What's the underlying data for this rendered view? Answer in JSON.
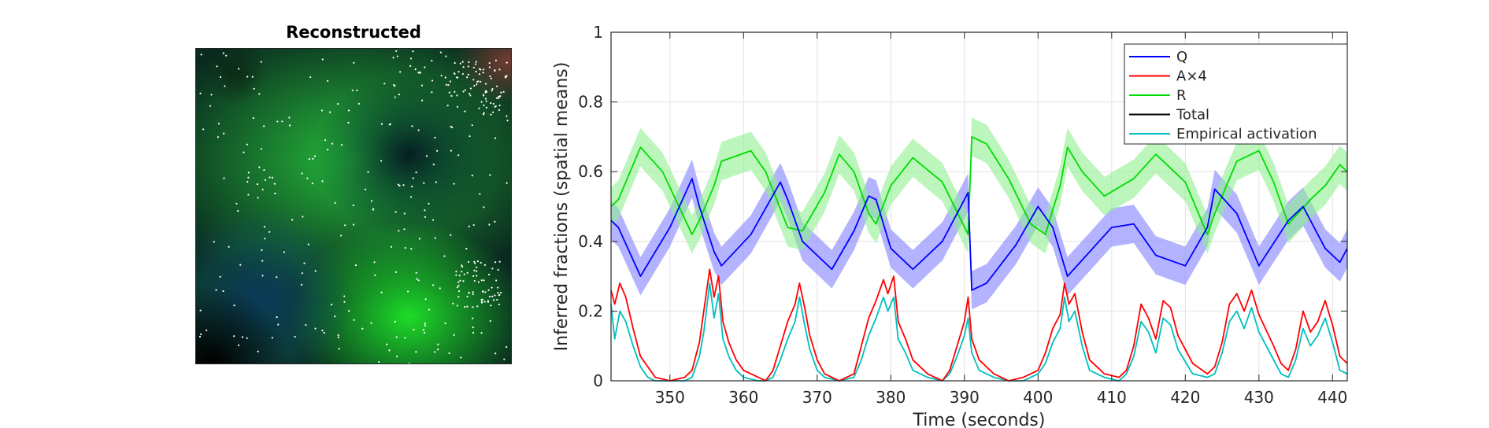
{
  "left_panel": {
    "title": "Reconstructed",
    "type": "image"
  },
  "chart_data": {
    "type": "line",
    "xlabel": "Time (seconds)",
    "ylabel": "Inferred fractions (spatial means)",
    "xlim": [
      342,
      442
    ],
    "ylim": [
      0,
      1
    ],
    "x_ticks": [
      350,
      360,
      370,
      380,
      390,
      400,
      410,
      420,
      430,
      440
    ],
    "y_ticks": [
      0,
      0.2,
      0.4,
      0.6,
      0.8,
      1
    ],
    "y_tick_labels": [
      "0",
      "0.2",
      "0.4",
      "0.6",
      "0.8",
      "1"
    ],
    "grid": true,
    "legend_position": "top-right",
    "series": [
      {
        "name": "Q",
        "color": "#0000ff",
        "band_color": "#8080ff",
        "x": [
          342,
          343,
          346,
          350,
          353,
          354,
          356,
          357,
          361,
          365,
          366,
          368,
          372,
          375,
          377,
          378,
          380,
          383,
          387,
          390.5,
          391,
          393,
          397,
          400,
          402,
          404,
          407,
          410,
          413,
          416,
          420,
          423,
          424,
          427,
          430,
          434,
          436,
          439,
          441,
          442
        ],
        "y": [
          0.46,
          0.44,
          0.3,
          0.44,
          0.58,
          0.5,
          0.37,
          0.33,
          0.42,
          0.57,
          0.52,
          0.4,
          0.32,
          0.43,
          0.53,
          0.52,
          0.38,
          0.32,
          0.4,
          0.54,
          0.26,
          0.28,
          0.39,
          0.5,
          0.44,
          0.3,
          0.37,
          0.44,
          0.45,
          0.36,
          0.33,
          0.44,
          0.55,
          0.48,
          0.33,
          0.46,
          0.5,
          0.38,
          0.34,
          0.38
        ]
      },
      {
        "name": "A×4",
        "color": "#ff0000",
        "x": [
          342,
          342.5,
          343.2,
          344,
          345,
          346,
          347,
          348,
          350,
          352,
          353,
          354,
          354.6,
          355.4,
          356,
          356.6,
          357.2,
          358,
          359,
          360,
          362,
          363,
          364,
          365,
          366,
          367,
          367.6,
          368.3,
          369,
          370,
          371,
          373,
          375,
          376,
          377,
          378,
          379,
          379.6,
          380.4,
          381,
          382,
          383,
          385,
          387,
          388,
          389,
          390,
          390.5,
          391,
          392,
          394,
          396,
          398,
          400,
          401,
          402,
          403,
          403.6,
          404.2,
          405,
          406,
          407,
          409,
          411,
          412,
          413,
          414,
          415,
          416,
          417,
          418,
          419,
          421,
          423,
          424,
          425,
          426,
          427,
          428,
          429,
          430,
          432,
          433,
          434,
          435,
          436,
          437,
          438,
          439,
          440,
          441,
          442
        ],
        "y": [
          0.26,
          0.22,
          0.28,
          0.24,
          0.15,
          0.07,
          0.04,
          0.01,
          0.0,
          0.01,
          0.03,
          0.11,
          0.2,
          0.32,
          0.24,
          0.3,
          0.17,
          0.11,
          0.06,
          0.03,
          0.01,
          0.0,
          0.03,
          0.1,
          0.17,
          0.22,
          0.28,
          0.21,
          0.13,
          0.06,
          0.02,
          0.0,
          0.02,
          0.1,
          0.18,
          0.23,
          0.29,
          0.25,
          0.3,
          0.17,
          0.12,
          0.06,
          0.02,
          0.0,
          0.03,
          0.1,
          0.17,
          0.24,
          0.12,
          0.06,
          0.02,
          0.0,
          0.01,
          0.03,
          0.08,
          0.15,
          0.19,
          0.28,
          0.22,
          0.25,
          0.14,
          0.06,
          0.02,
          0.01,
          0.03,
          0.1,
          0.22,
          0.18,
          0.12,
          0.23,
          0.21,
          0.13,
          0.05,
          0.02,
          0.04,
          0.11,
          0.22,
          0.25,
          0.2,
          0.26,
          0.19,
          0.1,
          0.05,
          0.03,
          0.09,
          0.2,
          0.14,
          0.17,
          0.23,
          0.16,
          0.07,
          0.05
        ]
      },
      {
        "name": "R",
        "color": "#00dd00",
        "band_color": "#90f090",
        "x": [
          342,
          343,
          346,
          349,
          353,
          354,
          356,
          357,
          361,
          363,
          366,
          368,
          371,
          373,
          375,
          377,
          378,
          380,
          383,
          387,
          390.5,
          391,
          393,
          396,
          399,
          401,
          403,
          404,
          406,
          409,
          413,
          416,
          420,
          423,
          424,
          427,
          430,
          432,
          434,
          437,
          439,
          441,
          442
        ],
        "y": [
          0.5,
          0.52,
          0.67,
          0.6,
          0.42,
          0.46,
          0.56,
          0.63,
          0.66,
          0.6,
          0.44,
          0.43,
          0.54,
          0.65,
          0.6,
          0.48,
          0.45,
          0.56,
          0.64,
          0.57,
          0.42,
          0.7,
          0.68,
          0.58,
          0.45,
          0.42,
          0.56,
          0.67,
          0.6,
          0.53,
          0.58,
          0.65,
          0.57,
          0.42,
          0.48,
          0.63,
          0.66,
          0.57,
          0.45,
          0.52,
          0.56,
          0.62,
          0.6
        ]
      },
      {
        "name": "Total",
        "color": "#000000",
        "x": [],
        "y": []
      },
      {
        "name": "Empirical activation",
        "color": "#00bfbf",
        "x": [
          342,
          342.5,
          343.2,
          344,
          345,
          346,
          347,
          348,
          350,
          352,
          353,
          354,
          354.6,
          355.4,
          356,
          356.6,
          357.2,
          358,
          359,
          360,
          362,
          363,
          364,
          365,
          366,
          367,
          367.6,
          368.3,
          369,
          370,
          371,
          373,
          375,
          376,
          377,
          378,
          379,
          379.6,
          380.4,
          381,
          382,
          383,
          385,
          387,
          388,
          389,
          390,
          390.5,
          391,
          392,
          394,
          396,
          398,
          400,
          401,
          402,
          403,
          403.6,
          404.2,
          405,
          406,
          407,
          409,
          411,
          412,
          413,
          414,
          415,
          416,
          417,
          418,
          419,
          421,
          423,
          424,
          425,
          426,
          427,
          428,
          429,
          430,
          432,
          433,
          434,
          435,
          436,
          437,
          438,
          439,
          440,
          441,
          442
        ],
        "y": [
          0.22,
          0.12,
          0.2,
          0.17,
          0.1,
          0.04,
          0.01,
          0.0,
          0.0,
          0.0,
          0.01,
          0.07,
          0.14,
          0.28,
          0.18,
          0.25,
          0.12,
          0.07,
          0.03,
          0.01,
          0.0,
          0.0,
          0.01,
          0.06,
          0.12,
          0.17,
          0.24,
          0.16,
          0.09,
          0.03,
          0.01,
          0.0,
          0.01,
          0.06,
          0.13,
          0.18,
          0.24,
          0.2,
          0.24,
          0.12,
          0.08,
          0.03,
          0.01,
          0.0,
          0.02,
          0.07,
          0.13,
          0.18,
          0.08,
          0.03,
          0.01,
          0.0,
          0.0,
          0.02,
          0.05,
          0.11,
          0.15,
          0.24,
          0.17,
          0.2,
          0.1,
          0.03,
          0.01,
          0.0,
          0.02,
          0.07,
          0.17,
          0.14,
          0.08,
          0.18,
          0.16,
          0.09,
          0.02,
          0.01,
          0.02,
          0.08,
          0.17,
          0.2,
          0.15,
          0.21,
          0.14,
          0.06,
          0.02,
          0.01,
          0.06,
          0.15,
          0.1,
          0.13,
          0.18,
          0.11,
          0.03,
          0.02
        ]
      }
    ]
  }
}
